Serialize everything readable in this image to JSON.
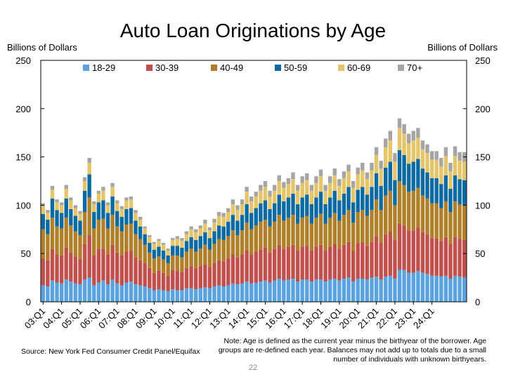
{
  "page": {
    "title": "Auto Loan Originations by Age",
    "unit_left": "Billions of Dollars",
    "unit_right": "Billions of Dollars",
    "source": "Source: New York Fed Consumer Credit Panel/Equifax",
    "note": "Note: Age is defined as the current year minus the birthyear of the borrower. Age groups are re-defined each year. Balances may not add up to totals due to a small number of individuals with unknown birthyears.",
    "page_number": "22"
  },
  "chart_data": {
    "type": "bar",
    "stacked": true,
    "title": "Auto Loan Originations by Age",
    "ylabel": "Billions of Dollars",
    "ylim": [
      0,
      250
    ],
    "yticks": [
      0,
      50,
      100,
      150,
      200,
      250
    ],
    "grid": false,
    "legend_position": "top",
    "x_tick_labels": [
      "03:Q1",
      "04:Q1",
      "05:Q1",
      "06:Q1",
      "07:Q1",
      "08:Q1",
      "09:Q1",
      "10:Q1",
      "11:Q1",
      "12:Q1",
      "13:Q1",
      "14:Q1",
      "15:Q1",
      "16:Q1",
      "17:Q1",
      "18:Q1",
      "19:Q1",
      "20:Q1",
      "21:Q1",
      "22:Q1",
      "23:Q1",
      "24:Q1"
    ],
    "x_start": "2003:Q1",
    "x_end": "2024:Q4",
    "series": [
      {
        "name": "18-29",
        "color": "#5ba3e0",
        "values": [
          17,
          16,
          22,
          20,
          19,
          23,
          21,
          19,
          18,
          23,
          25,
          17,
          20,
          22,
          18,
          23,
          19,
          17,
          20,
          21,
          18,
          17,
          16,
          14,
          12,
          13,
          12,
          11,
          13,
          12,
          12,
          14,
          14,
          13,
          14,
          15,
          14,
          16,
          17,
          16,
          17,
          19,
          18,
          19,
          21,
          19,
          20,
          21,
          22,
          20,
          22,
          24,
          22,
          23,
          24,
          21,
          23,
          23,
          21,
          23,
          23,
          21,
          23,
          24,
          22,
          24,
          25,
          21,
          24,
          24,
          23,
          25,
          26,
          23,
          26,
          27,
          24,
          33,
          33,
          30,
          30,
          32,
          30,
          29,
          27,
          27,
          26,
          27,
          24,
          27,
          26,
          25
        ]
      },
      {
        "name": "30-39",
        "color": "#c0504d",
        "values": [
          28,
          27,
          33,
          29,
          29,
          33,
          30,
          28,
          26,
          37,
          44,
          31,
          35,
          33,
          31,
          36,
          32,
          31,
          32,
          32,
          28,
          26,
          24,
          21,
          18,
          19,
          18,
          16,
          20,
          20,
          19,
          21,
          23,
          22,
          23,
          24,
          22,
          24,
          26,
          26,
          28,
          30,
          28,
          30,
          33,
          30,
          32,
          33,
          34,
          31,
          33,
          35,
          33,
          34,
          35,
          32,
          34,
          35,
          32,
          34,
          36,
          32,
          34,
          36,
          33,
          35,
          37,
          32,
          37,
          38,
          35,
          37,
          42,
          38,
          44,
          46,
          40,
          48,
          46,
          44,
          44,
          45,
          42,
          41,
          39,
          39,
          37,
          40,
          36,
          40,
          39,
          39
        ]
      },
      {
        "name": "40-49",
        "color": "#b07f2a",
        "values": [
          30,
          27,
          32,
          29,
          28,
          31,
          28,
          26,
          25,
          33,
          39,
          28,
          30,
          31,
          27,
          31,
          27,
          25,
          28,
          28,
          24,
          22,
          19,
          16,
          15,
          15,
          14,
          13,
          15,
          16,
          15,
          17,
          18,
          17,
          18,
          20,
          18,
          20,
          22,
          22,
          23,
          25,
          23,
          25,
          28,
          26,
          27,
          29,
          29,
          27,
          28,
          31,
          29,
          30,
          31,
          28,
          30,
          31,
          28,
          30,
          32,
          28,
          30,
          32,
          29,
          31,
          33,
          29,
          32,
          33,
          31,
          33,
          38,
          34,
          40,
          42,
          36,
          44,
          42,
          40,
          41,
          41,
          38,
          37,
          36,
          36,
          34,
          37,
          33,
          37,
          36,
          36
        ]
      },
      {
        "name": "50-59",
        "color": "#0a6aa1",
        "values": [
          16,
          15,
          20,
          17,
          16,
          20,
          17,
          16,
          15,
          22,
          24,
          17,
          18,
          19,
          16,
          19,
          16,
          15,
          16,
          16,
          14,
          13,
          11,
          10,
          9,
          10,
          9,
          8,
          10,
          10,
          10,
          11,
          12,
          12,
          13,
          13,
          12,
          13,
          14,
          14,
          15,
          16,
          15,
          16,
          19,
          17,
          18,
          19,
          20,
          18,
          19,
          21,
          20,
          21,
          22,
          20,
          21,
          22,
          20,
          21,
          23,
          20,
          21,
          23,
          21,
          22,
          24,
          21,
          23,
          24,
          22,
          24,
          27,
          25,
          29,
          30,
          26,
          32,
          31,
          29,
          30,
          30,
          28,
          27,
          26,
          26,
          25,
          27,
          24,
          27,
          26,
          26
        ]
      },
      {
        "name": "60-69",
        "color": "#e6c56a",
        "values": [
          8,
          7,
          9,
          8,
          8,
          10,
          9,
          8,
          7,
          10,
          12,
          8,
          9,
          10,
          8,
          10,
          8,
          8,
          9,
          9,
          8,
          7,
          6,
          6,
          6,
          6,
          6,
          5,
          6,
          7,
          7,
          7,
          8,
          8,
          8,
          9,
          8,
          9,
          10,
          10,
          10,
          11,
          11,
          11,
          13,
          12,
          12,
          13,
          14,
          13,
          13,
          14,
          14,
          14,
          15,
          14,
          15,
          15,
          14,
          15,
          16,
          14,
          15,
          16,
          15,
          16,
          16,
          15,
          16,
          17,
          16,
          17,
          19,
          18,
          21,
          22,
          19,
          23,
          22,
          21,
          22,
          22,
          20,
          20,
          19,
          19,
          18,
          20,
          18,
          20,
          19,
          19
        ]
      },
      {
        "name": "70+",
        "color": "#a5a5a5",
        "values": [
          3,
          3,
          4,
          3,
          3,
          4,
          3,
          3,
          3,
          4,
          5,
          3,
          3,
          4,
          3,
          4,
          3,
          3,
          3,
          3,
          3,
          3,
          2,
          2,
          2,
          2,
          2,
          2,
          2,
          3,
          3,
          3,
          3,
          3,
          3,
          4,
          3,
          4,
          4,
          4,
          4,
          5,
          5,
          5,
          5,
          5,
          5,
          6,
          6,
          6,
          6,
          6,
          6,
          6,
          7,
          6,
          7,
          7,
          6,
          7,
          7,
          6,
          7,
          7,
          7,
          7,
          7,
          7,
          7,
          8,
          7,
          8,
          8,
          8,
          9,
          10,
          9,
          10,
          10,
          10,
          10,
          10,
          9,
          9,
          9,
          9,
          9,
          9,
          9,
          10,
          9,
          10
        ]
      }
    ]
  }
}
